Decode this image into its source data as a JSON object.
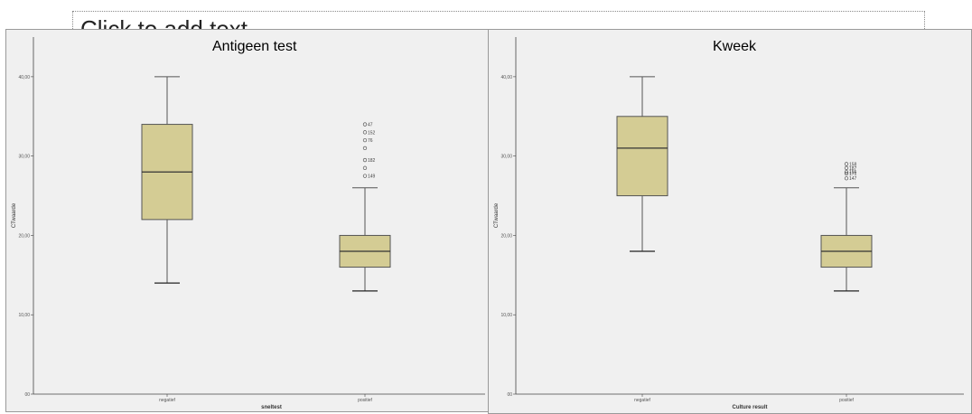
{
  "slide": {
    "placeholder_text": "Click to add text"
  },
  "colors": {
    "box_fill": "#d4cc94",
    "box_stroke": "#555555",
    "panel_bg": "#f0f0f0"
  },
  "chart_data": [
    {
      "type": "boxplot",
      "title": "Antigeen test",
      "xlabel": "sneltest",
      "ylabel": "CTwaarde",
      "ylim": [
        0,
        45
      ],
      "yticks": [
        "00",
        "10,00",
        "20,00",
        "30,00",
        "40,00"
      ],
      "ytick_values": [
        0,
        10,
        20,
        30,
        40
      ],
      "categories": [
        "negatief",
        "positief"
      ],
      "boxes": [
        {
          "category": "negatief",
          "min": 14,
          "q1": 22,
          "median": 28,
          "q3": 34,
          "max": 40,
          "outliers": []
        },
        {
          "category": "positief",
          "min": 13,
          "q1": 16,
          "median": 18,
          "q3": 20,
          "max": 26,
          "outliers": [
            {
              "value": 34,
              "label": "47"
            },
            {
              "value": 33,
              "label": "152"
            },
            {
              "value": 32,
              "label": "76"
            },
            {
              "value": 31,
              "label": ""
            },
            {
              "value": 29.5,
              "label": "182"
            },
            {
              "value": 28.5,
              "label": ""
            },
            {
              "value": 27.5,
              "label": "149"
            }
          ]
        }
      ]
    },
    {
      "type": "boxplot",
      "title": "Kweek",
      "xlabel": "Culture result",
      "ylabel": "CTwaarde",
      "ylim": [
        0,
        45
      ],
      "yticks": [
        "00",
        "10,00",
        "20,00",
        "30,00",
        "40,00"
      ],
      "ytick_values": [
        0,
        10,
        20,
        30,
        40
      ],
      "categories": [
        "negatief",
        "positief"
      ],
      "boxes": [
        {
          "category": "negatief",
          "min": 18,
          "q1": 25,
          "median": 31,
          "q3": 35,
          "max": 40,
          "outliers": []
        },
        {
          "category": "positief",
          "min": 13,
          "q1": 16,
          "median": 18,
          "q3": 20,
          "max": 26,
          "outliers": [
            {
              "value": 29,
              "label": "158"
            },
            {
              "value": 28.5,
              "label": "187"
            },
            {
              "value": 28,
              "label": "155"
            },
            {
              "value": 27.8,
              "label": "171"
            },
            {
              "value": 27.2,
              "label": "147"
            }
          ]
        }
      ]
    }
  ]
}
